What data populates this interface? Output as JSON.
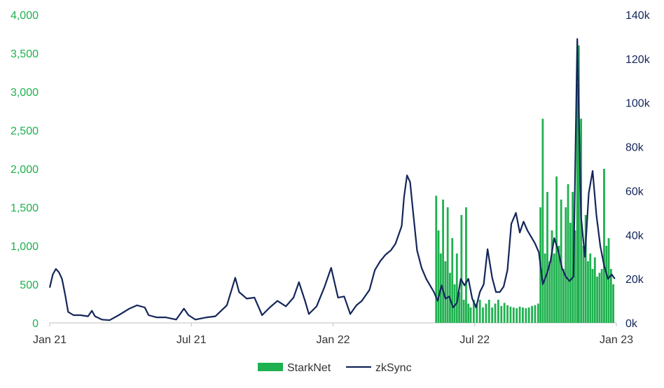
{
  "chart_data": {
    "type": "bar+line",
    "x_ticks": [
      "Jan 21",
      "Jul 21",
      "Jan 22",
      "Jul 22",
      "Jan 23"
    ],
    "y_left": {
      "ticks": [
        "0",
        "500",
        "1,000",
        "1,500",
        "2,000",
        "2,500",
        "3,000",
        "3,500",
        "4,000"
      ],
      "ylim": [
        0,
        4000
      ],
      "color": "#1fb14f"
    },
    "y_right": {
      "ticks": [
        "0k",
        "20k",
        "40k",
        "60k",
        "80k",
        "100k",
        "120k",
        "140k"
      ],
      "ylim": [
        0,
        140000
      ],
      "color": "#14265a"
    },
    "x_range": [
      "2021-01-01",
      "2023-01-10"
    ],
    "legend": {
      "position": "bottom",
      "items": [
        "StarkNet",
        "zkSync"
      ]
    },
    "series": [
      {
        "name": "StarkNet",
        "kind": "bar",
        "axis": "left",
        "color": "#1fb14f",
        "points": [
          [
            "2022-05-20",
            1650
          ],
          [
            "2022-05-23",
            1200
          ],
          [
            "2022-05-26",
            900
          ],
          [
            "2022-05-29",
            1600
          ],
          [
            "2022-06-01",
            800
          ],
          [
            "2022-06-04",
            1500
          ],
          [
            "2022-06-07",
            650
          ],
          [
            "2022-06-10",
            1100
          ],
          [
            "2022-06-13",
            500
          ],
          [
            "2022-06-16",
            900
          ],
          [
            "2022-06-19",
            400
          ],
          [
            "2022-06-22",
            1400
          ],
          [
            "2022-06-25",
            300
          ],
          [
            "2022-06-28",
            1500
          ],
          [
            "2022-07-01",
            250
          ],
          [
            "2022-07-04",
            200
          ],
          [
            "2022-07-08",
            300
          ],
          [
            "2022-07-12",
            250
          ],
          [
            "2022-07-16",
            300
          ],
          [
            "2022-07-20",
            200
          ],
          [
            "2022-07-24",
            250
          ],
          [
            "2022-07-28",
            300
          ],
          [
            "2022-08-01",
            200
          ],
          [
            "2022-08-05",
            250
          ],
          [
            "2022-08-09",
            300
          ],
          [
            "2022-08-13",
            220
          ],
          [
            "2022-08-17",
            260
          ],
          [
            "2022-08-21",
            230
          ],
          [
            "2022-08-25",
            210
          ],
          [
            "2022-08-29",
            200
          ],
          [
            "2022-09-02",
            190
          ],
          [
            "2022-09-06",
            210
          ],
          [
            "2022-09-10",
            200
          ],
          [
            "2022-09-14",
            190
          ],
          [
            "2022-09-18",
            200
          ],
          [
            "2022-09-22",
            220
          ],
          [
            "2022-09-26",
            230
          ],
          [
            "2022-09-30",
            250
          ],
          [
            "2022-10-03",
            1500
          ],
          [
            "2022-10-06",
            2650
          ],
          [
            "2022-10-09",
            900
          ],
          [
            "2022-10-12",
            1700
          ],
          [
            "2022-10-15",
            800
          ],
          [
            "2022-10-18",
            1200
          ],
          [
            "2022-10-21",
            900
          ],
          [
            "2022-10-24",
            1900
          ],
          [
            "2022-10-27",
            1000
          ],
          [
            "2022-10-30",
            1600
          ],
          [
            "2022-11-02",
            700
          ],
          [
            "2022-11-05",
            1500
          ],
          [
            "2022-11-08",
            1800
          ],
          [
            "2022-11-11",
            1300
          ],
          [
            "2022-11-14",
            1700
          ],
          [
            "2022-11-17",
            1200
          ],
          [
            "2022-11-20",
            3100
          ],
          [
            "2022-11-22",
            3600
          ],
          [
            "2022-11-25",
            2650
          ],
          [
            "2022-11-28",
            1000
          ],
          [
            "2022-12-01",
            1400
          ],
          [
            "2022-12-04",
            800
          ],
          [
            "2022-12-07",
            900
          ],
          [
            "2022-12-10",
            700
          ],
          [
            "2022-12-13",
            850
          ],
          [
            "2022-12-16",
            600
          ],
          [
            "2022-12-19",
            650
          ],
          [
            "2022-12-22",
            700
          ],
          [
            "2022-12-25",
            2000
          ],
          [
            "2022-12-28",
            1000
          ],
          [
            "2022-12-31",
            1100
          ],
          [
            "2023-01-03",
            700
          ],
          [
            "2023-01-06",
            500
          ]
        ]
      },
      {
        "name": "zkSync",
        "kind": "line",
        "axis": "right",
        "color": "#14265a",
        "points": [
          [
            "2021-01-01",
            16000
          ],
          [
            "2021-01-05",
            22000
          ],
          [
            "2021-01-09",
            24500
          ],
          [
            "2021-01-13",
            23000
          ],
          [
            "2021-01-17",
            20000
          ],
          [
            "2021-01-21",
            13000
          ],
          [
            "2021-01-25",
            5000
          ],
          [
            "2021-02-01",
            3500
          ],
          [
            "2021-02-10",
            3500
          ],
          [
            "2021-02-20",
            3000
          ],
          [
            "2021-02-25",
            5500
          ],
          [
            "2021-03-01",
            3000
          ],
          [
            "2021-03-10",
            1500
          ],
          [
            "2021-03-20",
            1200
          ],
          [
            "2021-04-01",
            3500
          ],
          [
            "2021-04-15",
            6500
          ],
          [
            "2021-04-25",
            8000
          ],
          [
            "2021-05-05",
            7000
          ],
          [
            "2021-05-10",
            3500
          ],
          [
            "2021-05-20",
            2500
          ],
          [
            "2021-06-01",
            2500
          ],
          [
            "2021-06-15",
            1500
          ],
          [
            "2021-06-25",
            6500
          ],
          [
            "2021-07-01",
            3500
          ],
          [
            "2021-07-10",
            1500
          ],
          [
            "2021-07-25",
            2500
          ],
          [
            "2021-08-05",
            3000
          ],
          [
            "2021-08-20",
            8000
          ],
          [
            "2021-08-31",
            20500
          ],
          [
            "2021-09-05",
            14000
          ],
          [
            "2021-09-15",
            11000
          ],
          [
            "2021-09-25",
            11500
          ],
          [
            "2021-10-05",
            3500
          ],
          [
            "2021-10-15",
            7000
          ],
          [
            "2021-10-25",
            10000
          ],
          [
            "2021-11-05",
            7500
          ],
          [
            "2021-11-15",
            11500
          ],
          [
            "2021-11-22",
            18500
          ],
          [
            "2021-11-30",
            10000
          ],
          [
            "2021-12-05",
            4000
          ],
          [
            "2021-12-15",
            7500
          ],
          [
            "2021-12-25",
            16000
          ],
          [
            "2022-01-03",
            25000
          ],
          [
            "2022-01-12",
            11500
          ],
          [
            "2022-01-20",
            12000
          ],
          [
            "2022-01-28",
            4000
          ],
          [
            "2022-02-05",
            8000
          ],
          [
            "2022-02-12",
            10000
          ],
          [
            "2022-02-22",
            15000
          ],
          [
            "2022-03-01",
            24000
          ],
          [
            "2022-03-08",
            28000
          ],
          [
            "2022-03-15",
            31000
          ],
          [
            "2022-03-22",
            33000
          ],
          [
            "2022-03-28",
            36000
          ],
          [
            "2022-04-01",
            40000
          ],
          [
            "2022-04-05",
            44000
          ],
          [
            "2022-04-08",
            57000
          ],
          [
            "2022-04-12",
            67000
          ],
          [
            "2022-04-16",
            64000
          ],
          [
            "2022-04-20",
            50000
          ],
          [
            "2022-04-25",
            33000
          ],
          [
            "2022-05-01",
            25000
          ],
          [
            "2022-05-07",
            20000
          ],
          [
            "2022-05-12",
            17000
          ],
          [
            "2022-05-17",
            14000
          ],
          [
            "2022-05-22",
            10000
          ],
          [
            "2022-05-27",
            17000
          ],
          [
            "2022-06-01",
            11000
          ],
          [
            "2022-06-06",
            12000
          ],
          [
            "2022-06-11",
            7000
          ],
          [
            "2022-06-16",
            9000
          ],
          [
            "2022-06-21",
            20000
          ],
          [
            "2022-06-26",
            17000
          ],
          [
            "2022-07-01",
            20000
          ],
          [
            "2022-07-06",
            11000
          ],
          [
            "2022-07-11",
            7000
          ],
          [
            "2022-07-16",
            14000
          ],
          [
            "2022-07-21",
            17500
          ],
          [
            "2022-07-26",
            33500
          ],
          [
            "2022-08-01",
            20500
          ],
          [
            "2022-08-06",
            14000
          ],
          [
            "2022-08-11",
            14000
          ],
          [
            "2022-08-16",
            16500
          ],
          [
            "2022-08-21",
            24000
          ],
          [
            "2022-08-26",
            45000
          ],
          [
            "2022-09-01",
            50000
          ],
          [
            "2022-09-06",
            41000
          ],
          [
            "2022-09-11",
            46000
          ],
          [
            "2022-09-16",
            42000
          ],
          [
            "2022-09-21",
            39000
          ],
          [
            "2022-09-26",
            36000
          ],
          [
            "2022-10-01",
            32000
          ],
          [
            "2022-10-06",
            17500
          ],
          [
            "2022-10-11",
            22000
          ],
          [
            "2022-10-16",
            28000
          ],
          [
            "2022-10-21",
            38500
          ],
          [
            "2022-10-26",
            33000
          ],
          [
            "2022-10-31",
            25000
          ],
          [
            "2022-11-05",
            21000
          ],
          [
            "2022-11-10",
            19000
          ],
          [
            "2022-11-15",
            21000
          ],
          [
            "2022-11-20",
            129000
          ],
          [
            "2022-11-25",
            48000
          ],
          [
            "2022-11-30",
            30000
          ],
          [
            "2022-12-05",
            59000
          ],
          [
            "2022-12-10",
            69000
          ],
          [
            "2022-12-15",
            49000
          ],
          [
            "2022-12-20",
            35000
          ],
          [
            "2022-12-25",
            26000
          ],
          [
            "2022-12-30",
            20000
          ],
          [
            "2023-01-04",
            22000
          ],
          [
            "2023-01-08",
            20000
          ]
        ]
      }
    ]
  }
}
